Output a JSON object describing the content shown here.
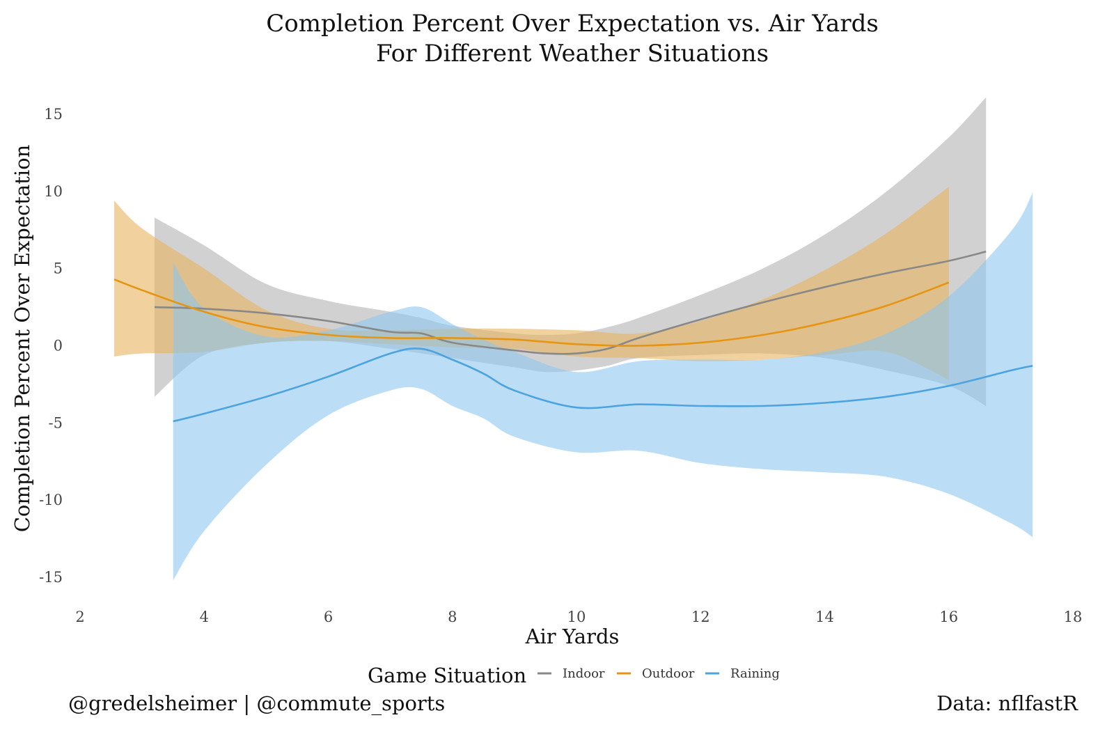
{
  "chart_data": {
    "type": "line",
    "title": "Completion Percent Over Expectation vs. Air Yards",
    "subtitle": "For Different Weather Situations",
    "xlabel": "Air Yards",
    "ylabel": "Completion Percent Over Expectation",
    "xlim": [
      2,
      18
    ],
    "ylim": [
      -15,
      15
    ],
    "x_ticks": [
      2,
      4,
      6,
      8,
      10,
      12,
      14,
      16,
      18
    ],
    "y_ticks": [
      -15,
      -10,
      -5,
      0,
      5,
      10,
      15
    ],
    "x_tick_labels": [
      "2",
      "4",
      "6",
      "8",
      "10",
      "12",
      "14",
      "16",
      "18"
    ],
    "y_tick_labels": [
      "-15",
      "-10",
      "-5",
      "0",
      "5",
      "10",
      "15"
    ],
    "grid": false,
    "legend": {
      "title": "Game Situation",
      "placement": "bottom",
      "entries": [
        "Indoor",
        "Outdoor",
        "Raining"
      ]
    },
    "caption_left": "@gredelsheimer | @commute_sports",
    "caption_right": "Data: nflfastR",
    "series": [
      {
        "name": "Indoor",
        "color": "#888888",
        "fill": "#b3b3b3",
        "x": [
          3.2,
          4,
          5,
          6,
          7,
          7.5,
          8,
          9,
          9.5,
          10,
          10.5,
          11,
          12,
          13,
          14,
          15,
          16,
          16.6
        ],
        "y": [
          2.5,
          2.4,
          2.1,
          1.6,
          0.9,
          0.8,
          0.2,
          -0.3,
          -0.5,
          -0.5,
          -0.2,
          0.5,
          1.7,
          2.8,
          3.8,
          4.7,
          5.5,
          6.1
        ],
        "upper": [
          8.3,
          6.5,
          4.0,
          2.9,
          2.2,
          1.8,
          1.3,
          0.8,
          0.7,
          0.8,
          1.2,
          1.8,
          3.3,
          5.0,
          7.2,
          10.0,
          13.5,
          16.1
        ],
        "lower": [
          -3.3,
          -0.6,
          0.2,
          0.3,
          -0.2,
          -0.5,
          -0.8,
          -1.4,
          -1.7,
          -1.6,
          -1.3,
          -0.8,
          -0.6,
          -0.5,
          -0.8,
          -1.6,
          -2.6,
          -3.9
        ]
      },
      {
        "name": "Outdoor",
        "color": "#e69512",
        "fill": "#e8b35c",
        "x": [
          2.55,
          3,
          4,
          5,
          6,
          7,
          8,
          9,
          10,
          11,
          12,
          13,
          14,
          15,
          16
        ],
        "y": [
          4.3,
          3.6,
          2.2,
          1.2,
          0.7,
          0.5,
          0.5,
          0.4,
          0.1,
          0.0,
          0.2,
          0.7,
          1.5,
          2.6,
          4.1
        ],
        "upper": [
          9.4,
          7.6,
          5.0,
          2.3,
          1.1,
          1.0,
          1.1,
          1.1,
          1.0,
          0.8,
          1.6,
          3.0,
          4.9,
          7.3,
          10.3
        ],
        "lower": [
          -0.7,
          -0.5,
          -0.4,
          0.2,
          0.3,
          0.1,
          -0.1,
          -0.2,
          -0.7,
          -0.8,
          -1.0,
          -0.9,
          -0.6,
          -0.4,
          -2.2
        ]
      },
      {
        "name": "Raining",
        "color": "#4ba3e0",
        "fill": "#8ec7ef",
        "x": [
          3.5,
          4,
          5,
          6,
          7,
          7.5,
          8,
          8.5,
          9,
          10,
          11,
          12,
          13,
          14,
          15,
          16,
          17,
          17.35
        ],
        "y": [
          -4.9,
          -4.4,
          -3.3,
          -2.0,
          -0.5,
          -0.2,
          -0.9,
          -1.8,
          -2.9,
          -4.0,
          -3.8,
          -3.9,
          -3.9,
          -3.7,
          -3.3,
          -2.6,
          -1.6,
          -1.3
        ],
        "upper": [
          5.4,
          2.4,
          0.6,
          1.0,
          2.2,
          2.5,
          1.4,
          0.4,
          -0.4,
          -1.7,
          -1.0,
          -0.9,
          -0.9,
          -0.4,
          0.8,
          3.2,
          7.4,
          9.9
        ],
        "lower": [
          -15.2,
          -12.0,
          -7.7,
          -4.5,
          -2.9,
          -2.8,
          -3.9,
          -4.7,
          -5.9,
          -6.9,
          -6.8,
          -7.6,
          -8.0,
          -8.2,
          -8.5,
          -9.6,
          -11.5,
          -12.4
        ]
      }
    ]
  }
}
